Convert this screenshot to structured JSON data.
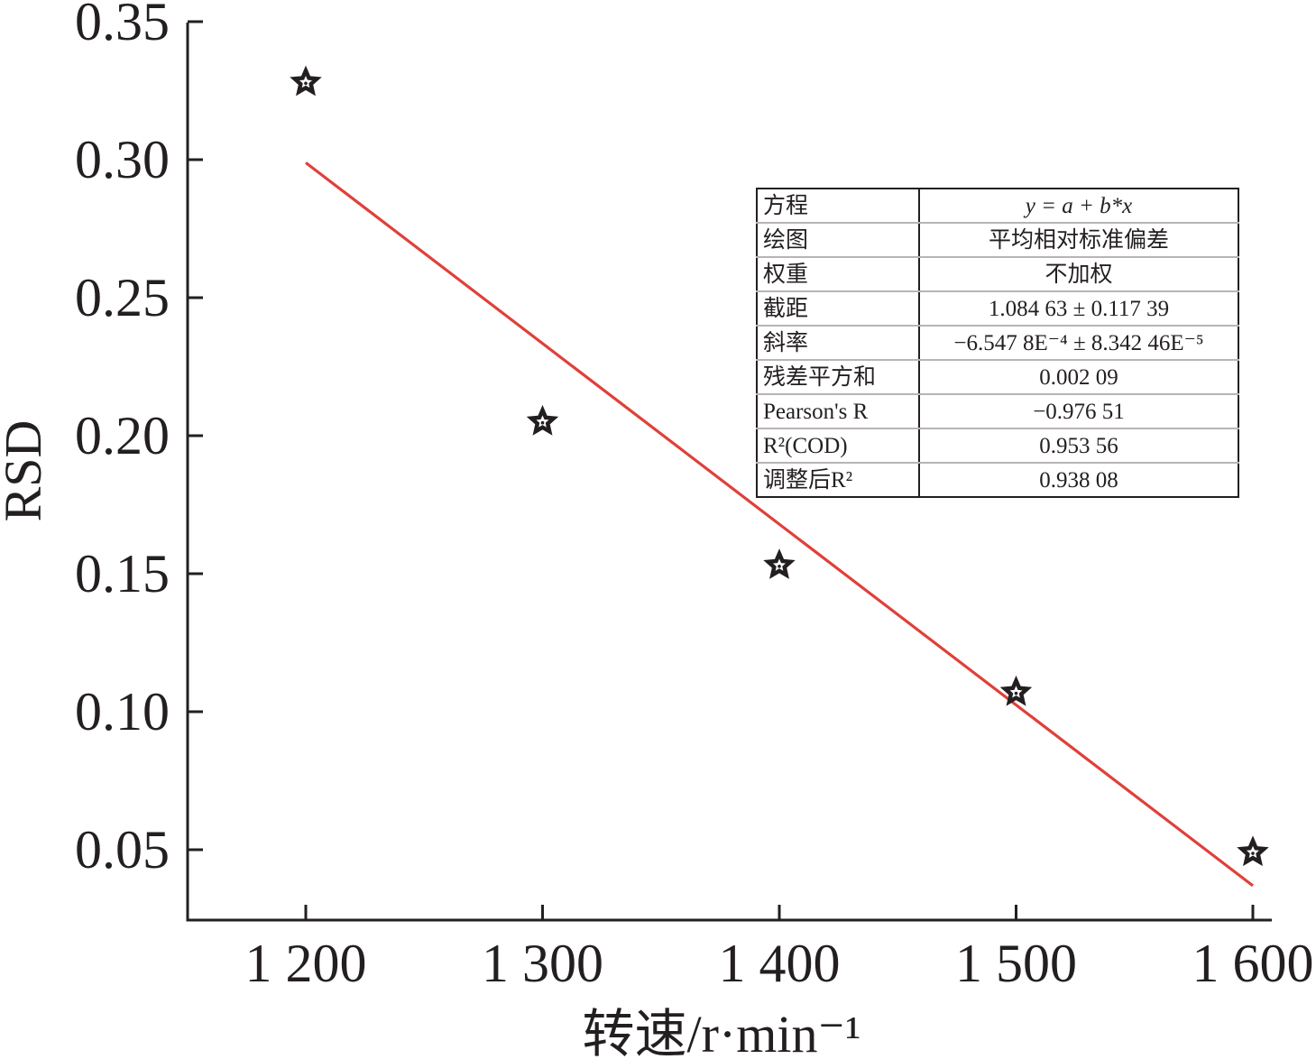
{
  "chart_data": {
    "type": "scatter",
    "title": "",
    "xlabel": "转速/r·min⁻¹",
    "ylabel": "RSD",
    "xlim": [
      1150,
      1603
    ],
    "ylim": [
      0.024,
      0.35
    ],
    "x_ticks": [
      1200,
      1300,
      1400,
      1500,
      1600
    ],
    "x_tick_labels": [
      "1 200",
      "1 300",
      "1 400",
      "1 500",
      "1 600"
    ],
    "y_ticks": [
      0.05,
      0.1,
      0.15,
      0.2,
      0.25,
      0.3,
      0.35
    ],
    "y_tick_labels": [
      "0.05",
      "0.10",
      "0.15",
      "0.20",
      "0.25",
      "0.30",
      "0.35"
    ],
    "grid": false,
    "legend": "none",
    "series": [
      {
        "marker": "star",
        "color": "#231f20",
        "x": [
          1200,
          1300,
          1400,
          1500,
          1600
        ],
        "y": [
          0.328,
          0.205,
          0.153,
          0.107,
          0.049
        ]
      }
    ],
    "fit_line": {
      "color": "#e0403a",
      "intercept": 1.08463,
      "slope": -0.00065478,
      "x_range": [
        1200,
        1600
      ]
    },
    "stats_table": [
      {
        "key": "方程",
        "value": "y = a + b*x"
      },
      {
        "key": "绘图",
        "value": "平均相对标准偏差"
      },
      {
        "key": "权重",
        "value": "不加权"
      },
      {
        "key": "截距",
        "value": "1.084 63 ± 0.117 39"
      },
      {
        "key": "斜率",
        "value": "−6.547 8E⁻⁴ ± 8.342 46E⁻⁵"
      },
      {
        "key": "残差平方和",
        "value": "0.002 09"
      },
      {
        "key": "Pearson's R",
        "value": "−0.976 51"
      },
      {
        "key": "R²(COD)",
        "value": "0.953 56"
      },
      {
        "key": "调整后R²",
        "value": "0.938 08"
      }
    ]
  }
}
